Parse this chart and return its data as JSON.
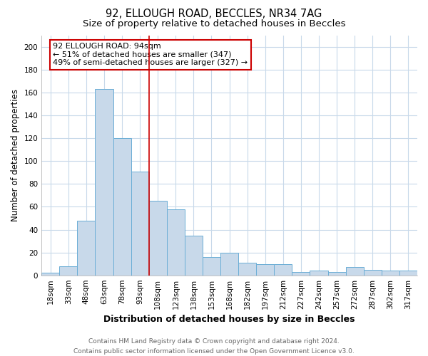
{
  "title_line1": "92, ELLOUGH ROAD, BECCLES, NR34 7AG",
  "title_line2": "Size of property relative to detached houses in Beccles",
  "xlabel": "Distribution of detached houses by size in Beccles",
  "ylabel": "Number of detached properties",
  "categories": [
    "18sqm",
    "33sqm",
    "48sqm",
    "63sqm",
    "78sqm",
    "93sqm",
    "108sqm",
    "123sqm",
    "138sqm",
    "153sqm",
    "168sqm",
    "182sqm",
    "197sqm",
    "212sqm",
    "227sqm",
    "242sqm",
    "257sqm",
    "272sqm",
    "287sqm",
    "302sqm",
    "317sqm"
  ],
  "values": [
    2,
    8,
    48,
    163,
    120,
    91,
    65,
    58,
    35,
    16,
    20,
    11,
    10,
    10,
    3,
    4,
    3,
    7,
    5,
    4,
    4
  ],
  "bar_color": "#c8d9ea",
  "bar_edge_color": "#6baed6",
  "vline_index": 5,
  "annotation_title": "92 ELLOUGH ROAD: 94sqm",
  "annotation_line1": "← 51% of detached houses are smaller (347)",
  "annotation_line2": "49% of semi-detached houses are larger (327) →",
  "annotation_box_color": "#ffffff",
  "annotation_box_edge": "#cc0000",
  "vline_color": "#cc0000",
  "footer_line1": "Contains HM Land Registry data © Crown copyright and database right 2024.",
  "footer_line2": "Contains public sector information licensed under the Open Government Licence v3.0.",
  "ylim": [
    0,
    210
  ],
  "yticks": [
    0,
    20,
    40,
    60,
    80,
    100,
    120,
    140,
    160,
    180,
    200
  ],
  "background_color": "#ffffff",
  "grid_color": "#c8d9ea",
  "title_fontsize": 10.5,
  "subtitle_fontsize": 9.5,
  "xlabel_fontsize": 9,
  "ylabel_fontsize": 8.5,
  "tick_fontsize": 7.5,
  "footer_fontsize": 6.5,
  "annotation_fontsize": 8
}
